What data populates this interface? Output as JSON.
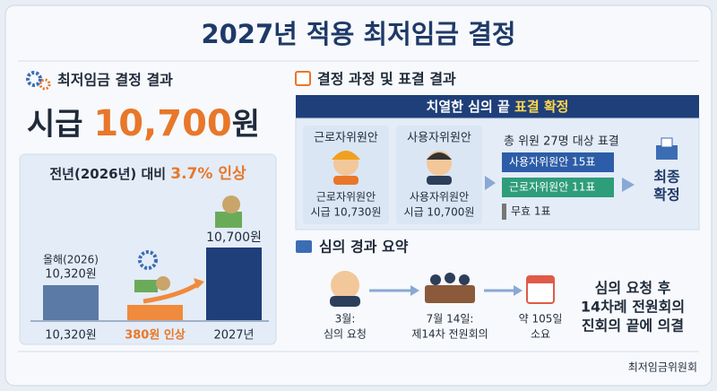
{
  "header": {
    "title": "2027년 적용 최저임금 결정"
  },
  "result": {
    "heading": "최저임금 결정 결과",
    "wage_prefix": "시급 ",
    "wage_amount": "10,700",
    "wage_unit": "원",
    "comparison_prefix": "전년(2026년) 대비 ",
    "comparison_highlight": "3.7% 인상",
    "chart": {
      "bar1_top": "올해(2026)",
      "bar1_value": "10,320원",
      "bar3_value": "10,700원",
      "labels": [
        "10,320원",
        "380원 인상",
        "2027년"
      ]
    }
  },
  "process": {
    "heading": "결정 과정 및 표결 결과",
    "banner_prefix": "치열한 심의 끝 ",
    "banner_highlight": "표결 확정",
    "proposals": [
      {
        "title": "근로자위원안",
        "body": [
          "근로자위원안",
          "시급 10,730원"
        ]
      },
      {
        "title": "사용자위원안",
        "body": [
          "사용자위원안",
          "시급 10,700원"
        ]
      }
    ],
    "vote_title": "총 위원 27명 대상 표결",
    "votes": [
      "사용자위원안 15표",
      "근로자위원안 11표",
      "무효 1표"
    ],
    "final": [
      "최종",
      "확정"
    ]
  },
  "summary": {
    "heading": "심의 경과 요약",
    "steps": [
      [
        "3월:",
        "심의 요청"
      ],
      [
        "7월 14일:",
        "제14차 전원회의"
      ],
      [
        "약 105일",
        "소요"
      ]
    ],
    "conclusion": [
      "심의 요청 후",
      "14차례 전원회의",
      "진회의 끝에 의결"
    ]
  },
  "footer": {
    "source": "최저임금위원회"
  }
}
